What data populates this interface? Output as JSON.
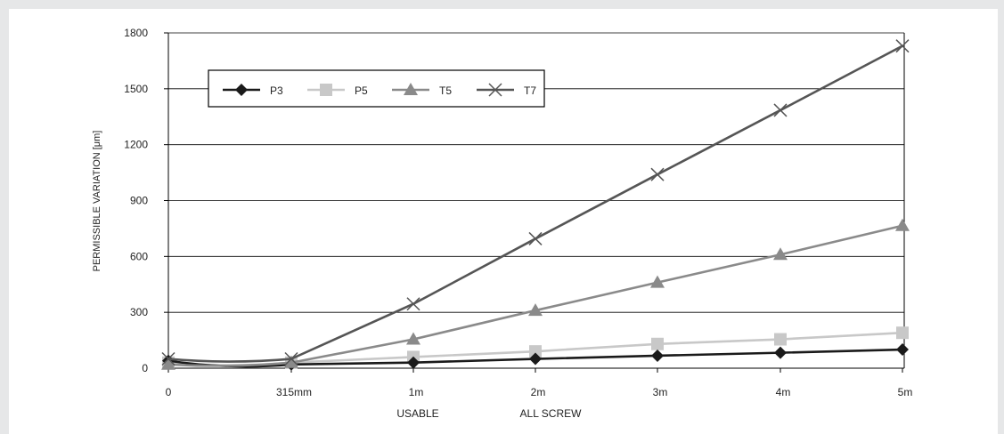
{
  "chart_data": {
    "type": "line",
    "ylabel": "PERMISSIBLE VARIATION [μm]",
    "ylim": [
      0,
      1800
    ],
    "yticks": [
      0,
      300,
      600,
      900,
      1200,
      1500,
      1800
    ],
    "categories": [
      "0",
      "315mm",
      "1m",
      "2m",
      "3m",
      "4m",
      "5m"
    ],
    "xlabels_secondary": [
      "USABLE",
      "ALL SCREW"
    ],
    "grid": "horizontal",
    "legend_position": "top-left",
    "series": [
      {
        "name": "P3",
        "marker": "diamond",
        "color": "#1a1a1a",
        "values": [
          40,
          20,
          30,
          50,
          67,
          83,
          100
        ]
      },
      {
        "name": "P5",
        "marker": "square",
        "color": "#c8c8c8",
        "values": [
          30,
          30,
          60,
          90,
          130,
          155,
          190
        ]
      },
      {
        "name": "T5",
        "marker": "triangle",
        "color": "#8a8a8a",
        "values": [
          20,
          30,
          155,
          310,
          460,
          610,
          765
        ]
      },
      {
        "name": "T7",
        "marker": "x",
        "color": "#555555",
        "values": [
          50,
          50,
          345,
          695,
          1040,
          1385,
          1730
        ]
      }
    ]
  }
}
